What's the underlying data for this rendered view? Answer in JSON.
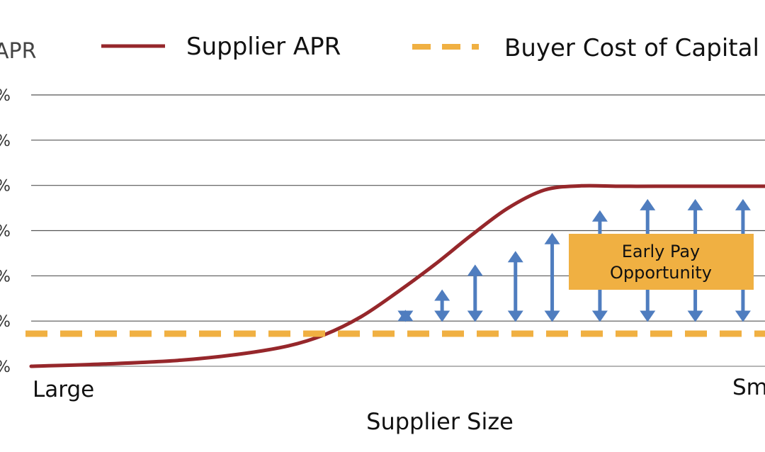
{
  "chart_data": {
    "type": "line",
    "title": "",
    "xlabel": "Supplier Size",
    "ylabel": "APR",
    "x_start_label": "Large",
    "x_end_label": "Small",
    "xlim": [
      0,
      100
    ],
    "ylim": [
      0,
      6
    ],
    "y_ticks": [
      0,
      1,
      2,
      3,
      4,
      5,
      6
    ],
    "y_tick_labels": [
      "%",
      "%",
      "%",
      "%",
      "%",
      "%",
      "%"
    ],
    "grid": true,
    "legend_position": "top",
    "series": [
      {
        "name": "Supplier APR",
        "style": "solid",
        "color": "#96272b",
        "x": [
          0,
          10,
          20,
          28,
          35,
          40,
          45,
          50,
          55,
          60,
          65,
          70,
          75,
          80,
          85,
          90,
          95,
          100
        ],
        "values": [
          0,
          0.05,
          0.13,
          0.26,
          0.45,
          0.7,
          1.1,
          1.65,
          2.25,
          2.9,
          3.5,
          3.9,
          3.99,
          3.98,
          3.98,
          3.98,
          3.98,
          3.98
        ]
      },
      {
        "name": "Buyer Cost of Capital",
        "style": "dashed",
        "color": "#f0b042",
        "x": [
          0,
          100
        ],
        "values": [
          0.72,
          0.72
        ]
      }
    ],
    "gap_arrows": {
      "color": "#4f7dbf",
      "x": [
        51,
        56,
        60.5,
        66,
        71,
        77.5,
        84,
        90.5,
        97
      ],
      "from": [
        0.98,
        0.98,
        0.98,
        0.98,
        0.98,
        0.98,
        0.98,
        0.98,
        0.98
      ],
      "to": [
        1.25,
        1.7,
        2.25,
        2.55,
        2.95,
        3.45,
        3.7,
        3.7,
        3.7
      ]
    },
    "annotation": {
      "lines": [
        "Early Pay",
        "Opportunity"
      ],
      "color": "#f0b042"
    }
  }
}
